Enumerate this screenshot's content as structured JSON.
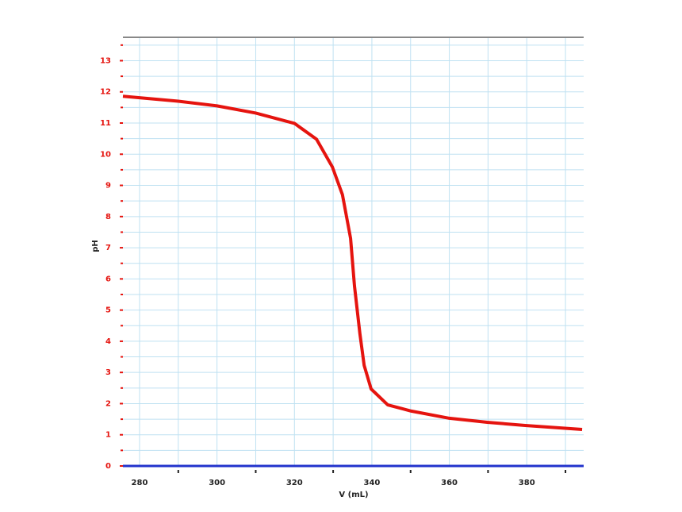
{
  "chart_data": {
    "type": "line",
    "x_label": "V (mL)",
    "y_label": "pH",
    "series": [
      {
        "name": "pH",
        "color": "#e5140f",
        "x": [
          275.7,
          290,
          300,
          310,
          320,
          325.7,
          329.8,
          332.4,
          334.5,
          335.5,
          336.9,
          338,
          339.8,
          344.1,
          350.2,
          360,
          369.8,
          379.6,
          394.3
        ],
        "values": [
          11.86,
          11.7,
          11.55,
          11.32,
          10.99,
          10.48,
          9.59,
          8.7,
          7.3,
          5.78,
          4.25,
          3.23,
          2.47,
          1.96,
          1.76,
          1.53,
          1.4,
          1.3,
          1.17
        ]
      }
    ],
    "xlim": [
      275.7,
      394.7
    ],
    "ylim": [
      0,
      13.75
    ],
    "xticks": [
      280,
      300,
      320,
      340,
      360,
      380
    ],
    "yticks": [
      0,
      1,
      2,
      3,
      4,
      5,
      6,
      7,
      8,
      9,
      10,
      11,
      12,
      13
    ],
    "minor_xticks": [
      290,
      310,
      330,
      350,
      370,
      390
    ],
    "minor_yticks": [
      0.5,
      1.5,
      2.5,
      3.5,
      4.5,
      5.5,
      6.5,
      7.5,
      8.5,
      9.5,
      10.5,
      11.5,
      12.5,
      13.5
    ],
    "grid": true
  }
}
